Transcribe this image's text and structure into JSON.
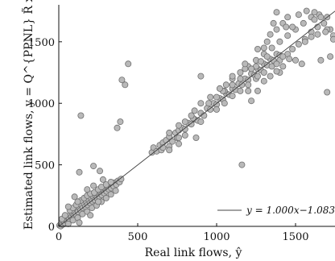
{
  "chart_data": {
    "type": "scatter",
    "title": "",
    "xlabel": "Real link flows, ŷ",
    "ylabel": "Estimated link flows, y = Q^{PPNL} R̃ x",
    "xlim": [
      0,
      1750
    ],
    "ylim": [
      0,
      1800
    ],
    "xticks": [
      0,
      500,
      1000,
      1500
    ],
    "yticks": [
      0,
      500,
      1000,
      1500
    ],
    "grid": false,
    "legend_position": "bottom-right",
    "series": [
      {
        "name": "y = 1.000x−1.083",
        "type": "line",
        "x": [
          0,
          1750
        ],
        "y": [
          -1.083,
          1748.9
        ]
      },
      {
        "type": "scatter",
        "points": [
          [
            5,
            8
          ],
          [
            12,
            2
          ],
          [
            18,
            25
          ],
          [
            25,
            15
          ],
          [
            30,
            40
          ],
          [
            38,
            28
          ],
          [
            45,
            55
          ],
          [
            52,
            44
          ],
          [
            60,
            70
          ],
          [
            66,
            58
          ],
          [
            72,
            90
          ],
          [
            80,
            75
          ],
          [
            88,
            105
          ],
          [
            95,
            88
          ],
          [
            100,
            120
          ],
          [
            108,
            98
          ],
          [
            115,
            140
          ],
          [
            122,
            118
          ],
          [
            130,
            155
          ],
          [
            138,
            130
          ],
          [
            145,
            170
          ],
          [
            152,
            150
          ],
          [
            160,
            185
          ],
          [
            168,
            160
          ],
          [
            175,
            200
          ],
          [
            182,
            175
          ],
          [
            190,
            215
          ],
          [
            198,
            190
          ],
          [
            205,
            225
          ],
          [
            212,
            205
          ],
          [
            220,
            240
          ],
          [
            228,
            215
          ],
          [
            235,
            250
          ],
          [
            242,
            230
          ],
          [
            250,
            265
          ],
          [
            258,
            240
          ],
          [
            265,
            280
          ],
          [
            272,
            255
          ],
          [
            280,
            295
          ],
          [
            288,
            270
          ],
          [
            295,
            305
          ],
          [
            302,
            285
          ],
          [
            310,
            320
          ],
          [
            318,
            300
          ],
          [
            325,
            335
          ],
          [
            332,
            310
          ],
          [
            340,
            345
          ],
          [
            348,
            325
          ],
          [
            355,
            355
          ],
          [
            365,
            340
          ],
          [
            375,
            370
          ],
          [
            385,
            360
          ],
          [
            395,
            385
          ],
          [
            20,
            60
          ],
          [
            40,
            90
          ],
          [
            70,
            130
          ],
          [
            90,
            150
          ],
          [
            110,
            175
          ],
          [
            140,
            210
          ],
          [
            160,
            230
          ],
          [
            180,
            250
          ],
          [
            200,
            265
          ],
          [
            225,
            275
          ],
          [
            250,
            300
          ],
          [
            270,
            320
          ],
          [
            300,
            340
          ],
          [
            60,
            20
          ],
          [
            90,
            50
          ],
          [
            120,
            70
          ],
          [
            150,
            100
          ],
          [
            180,
            120
          ],
          [
            210,
            150
          ],
          [
            240,
            170
          ],
          [
            270,
            200
          ],
          [
            300,
            230
          ],
          [
            330,
            260
          ],
          [
            360,
            290
          ],
          [
            100,
            240
          ],
          [
            120,
            200
          ],
          [
            180,
            300
          ],
          [
            220,
            330
          ],
          [
            250,
            200
          ],
          [
            280,
            380
          ],
          [
            130,
            30
          ],
          [
            200,
            90
          ],
          [
            60,
            160
          ],
          [
            140,
            900
          ],
          [
            220,
            490
          ],
          [
            130,
            440
          ],
          [
            260,
            450
          ],
          [
            330,
            360
          ],
          [
            400,
            1190
          ],
          [
            420,
            1150
          ],
          [
            440,
            1320
          ],
          [
            390,
            850
          ],
          [
            370,
            800
          ],
          [
            590,
            600
          ],
          [
            600,
            640
          ],
          [
            620,
            610
          ],
          [
            640,
            660
          ],
          [
            660,
            680
          ],
          [
            680,
            700
          ],
          [
            700,
            730
          ],
          [
            720,
            690
          ],
          [
            740,
            760
          ],
          [
            760,
            780
          ],
          [
            780,
            800
          ],
          [
            800,
            790
          ],
          [
            820,
            840
          ],
          [
            840,
            830
          ],
          [
            860,
            870
          ],
          [
            880,
            860
          ],
          [
            900,
            920
          ],
          [
            920,
            900
          ],
          [
            940,
            960
          ],
          [
            960,
            950
          ],
          [
            980,
            1000
          ],
          [
            1000,
            990
          ],
          [
            1020,
            1040
          ],
          [
            1040,
            1030
          ],
          [
            1060,
            1080
          ],
          [
            1080,
            1070
          ],
          [
            1100,
            1120
          ],
          [
            1120,
            1110
          ],
          [
            1140,
            1160
          ],
          [
            1160,
            1150
          ],
          [
            1180,
            1200
          ],
          [
            1200,
            1190
          ],
          [
            1220,
            1240
          ],
          [
            1240,
            1230
          ],
          [
            1260,
            1280
          ],
          [
            1280,
            1270
          ],
          [
            1300,
            1320
          ],
          [
            1320,
            1310
          ],
          [
            1340,
            1360
          ],
          [
            1360,
            1350
          ],
          [
            1380,
            1400
          ],
          [
            1400,
            1390
          ],
          [
            950,
            1000
          ],
          [
            1000,
            1050
          ],
          [
            1050,
            1000
          ],
          [
            1100,
            1060
          ],
          [
            1150,
            1200
          ],
          [
            1200,
            1150
          ],
          [
            1250,
            1300
          ],
          [
            1300,
            1250
          ],
          [
            1150,
            1100
          ],
          [
            1100,
            1150
          ],
          [
            1050,
            1100
          ],
          [
            1000,
            950
          ],
          [
            900,
            850
          ],
          [
            850,
            880
          ],
          [
            800,
            850
          ],
          [
            750,
            720
          ],
          [
            700,
            760
          ],
          [
            650,
            620
          ],
          [
            1200,
            1300
          ],
          [
            1250,
            1350
          ],
          [
            1300,
            1400
          ],
          [
            1350,
            1300
          ],
          [
            1400,
            1350
          ],
          [
            1200,
            1100
          ],
          [
            1150,
            1250
          ],
          [
            1250,
            1200
          ],
          [
            1320,
            1380
          ],
          [
            1280,
            1340
          ],
          [
            1100,
            1200
          ],
          [
            1180,
            1280
          ],
          [
            1220,
            1280
          ],
          [
            1260,
            1220
          ],
          [
            1060,
            1150
          ],
          [
            1040,
            1100
          ],
          [
            1300,
            1450
          ],
          [
            1350,
            1450
          ],
          [
            1320,
            1500
          ],
          [
            1400,
            1500
          ],
          [
            1450,
            1550
          ],
          [
            1500,
            1600
          ],
          [
            1550,
            1650
          ],
          [
            1600,
            1700
          ],
          [
            1380,
            1600
          ],
          [
            1420,
            1650
          ],
          [
            1450,
            1700
          ],
          [
            1520,
            1720
          ],
          [
            1570,
            1750
          ],
          [
            1620,
            1680
          ],
          [
            1650,
            1720
          ],
          [
            1700,
            1700
          ],
          [
            1720,
            1600
          ],
          [
            1740,
            1550
          ],
          [
            1680,
            1650
          ],
          [
            1640,
            1620
          ],
          [
            1600,
            1580
          ],
          [
            1560,
            1520
          ],
          [
            1500,
            1350
          ],
          [
            1450,
            1400
          ],
          [
            1400,
            1250
          ],
          [
            1540,
            1320
          ],
          [
            1660,
            1350
          ],
          [
            1720,
            1380
          ],
          [
            1740,
            1520
          ],
          [
            1700,
            1600
          ],
          [
            1480,
            1440
          ],
          [
            1520,
            1480
          ],
          [
            1560,
            1500
          ],
          [
            1600,
            1540
          ],
          [
            1640,
            1560
          ],
          [
            1690,
            1580
          ],
          [
            1700,
            1090
          ],
          [
            1160,
            500
          ],
          [
            1380,
            1740
          ],
          [
            1620,
            1740
          ],
          [
            1660,
            1700
          ],
          [
            1360,
            1650
          ],
          [
            1440,
            1620
          ],
          [
            1480,
            1620
          ],
          [
            1340,
            1560
          ],
          [
            900,
            1220
          ],
          [
            800,
            740
          ],
          [
            760,
            720
          ],
          [
            760,
            670
          ],
          [
            870,
            720
          ],
          [
            700,
            650
          ],
          [
            700,
            620
          ],
          [
            660,
            640
          ],
          [
            760,
            820
          ],
          [
            840,
            900
          ],
          [
            860,
            940
          ],
          [
            900,
            1000
          ],
          [
            960,
            1050
          ],
          [
            1020,
            1120
          ],
          [
            1100,
            1220
          ],
          [
            1180,
            1320
          ],
          [
            1260,
            1440
          ],
          [
            1220,
            1020
          ],
          [
            1260,
            1100
          ],
          [
            1300,
            1180
          ],
          [
            1340,
            1220
          ],
          [
            1380,
            1260
          ],
          [
            1420,
            1300
          ],
          [
            1460,
            1360
          ],
          [
            1380,
            1320
          ],
          [
            1420,
            1380
          ]
        ]
      }
    ]
  }
}
